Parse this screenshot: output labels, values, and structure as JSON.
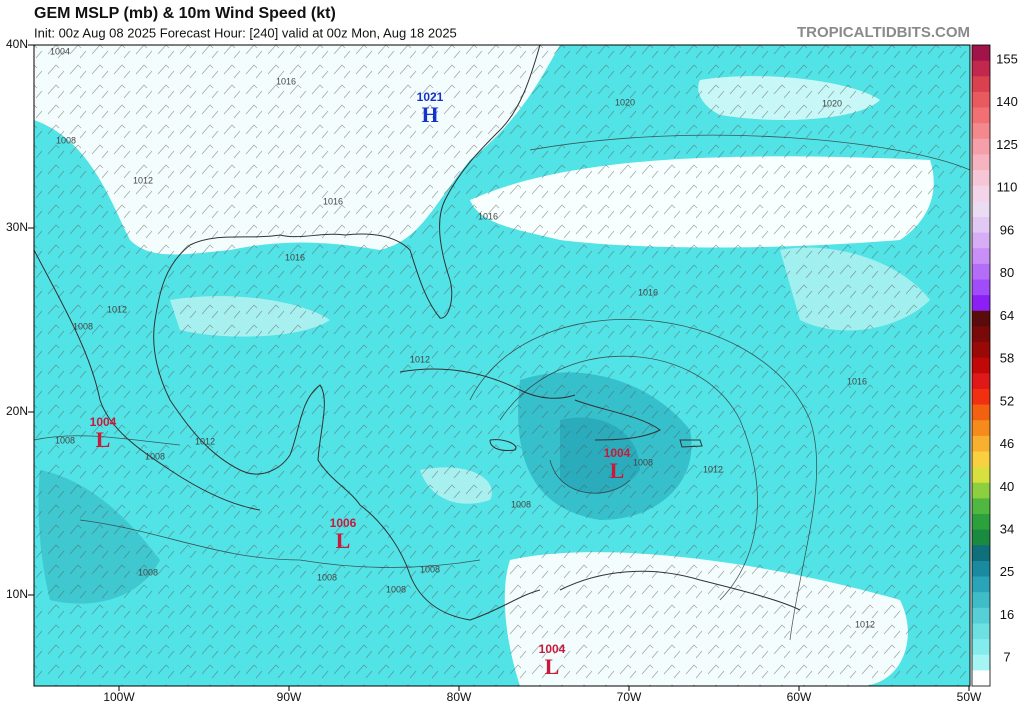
{
  "header": {
    "title": "GEM MSLP (mb) & 10m Wind Speed (kt)",
    "subtitle": "Init: 00z Aug 08 2025   Forecast Hour: [240]   valid at 00z Mon, Aug 18 2025",
    "brand": "TROPICALTIDBITS.COM"
  },
  "latitude_labels": [
    "40N",
    "30N",
    "20N",
    "10N"
  ],
  "longitude_labels": [
    "100W",
    "90W",
    "80W",
    "70W",
    "60W",
    "50W"
  ],
  "pressure_centers": [
    {
      "symbol": "H",
      "value": "1021"
    },
    {
      "symbol": "L",
      "value": "1004"
    },
    {
      "symbol": "L",
      "value": "1006"
    },
    {
      "symbol": "L",
      "value": "1004"
    },
    {
      "symbol": "L",
      "value": "1004"
    }
  ],
  "isobar_labels": [
    "1004",
    "1016",
    "1020",
    "1020",
    "1008",
    "1012",
    "1016",
    "1016",
    "1016",
    "1016",
    "1012",
    "1008",
    "1012",
    "1016",
    "1008",
    "1012",
    "1008",
    "1008",
    "1012",
    "1008",
    "1008",
    "1008",
    "1008",
    "1008",
    "1012"
  ],
  "colorbar": {
    "labels": [
      "155",
      "140",
      "125",
      "110",
      "96",
      "80",
      "64",
      "58",
      "52",
      "46",
      "40",
      "34",
      "25",
      "16",
      "7"
    ],
    "colors": [
      "#a0144a",
      "#c2284e",
      "#d9414f",
      "#e85a5e",
      "#f07074",
      "#f3898c",
      "#f5a0a8",
      "#f6b4c0",
      "#f6c6d6",
      "#f3d4e8",
      "#eadcf3",
      "#e2c9f4",
      "#d7aef5",
      "#c88ff6",
      "#b46df7",
      "#a04cf8",
      "#8a20f5",
      "#5a0c0c",
      "#7a0a0a",
      "#9a0808",
      "#c00808",
      "#e01818",
      "#f03010",
      "#f26010",
      "#f68a1a",
      "#f8b030",
      "#f8d040",
      "#d8e040",
      "#8cd040",
      "#50b840",
      "#2ca03c",
      "#1a8a40",
      "#0f6f7a",
      "#1a8aa0",
      "#2aa4b8",
      "#3fbcc8",
      "#56d0d6",
      "#6de0e2",
      "#84ecec",
      "#a6f4f4",
      "#ffffff"
    ]
  }
}
